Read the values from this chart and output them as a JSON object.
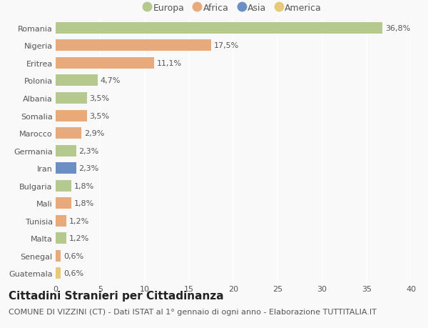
{
  "countries": [
    "Romania",
    "Nigeria",
    "Eritrea",
    "Polonia",
    "Albania",
    "Somalia",
    "Marocco",
    "Germania",
    "Iran",
    "Bulgaria",
    "Mali",
    "Tunisia",
    "Malta",
    "Senegal",
    "Guatemala"
  ],
  "values": [
    36.8,
    17.5,
    11.1,
    4.7,
    3.5,
    3.5,
    2.9,
    2.3,
    2.3,
    1.8,
    1.8,
    1.2,
    1.2,
    0.6,
    0.6
  ],
  "labels": [
    "36,8%",
    "17,5%",
    "11,1%",
    "4,7%",
    "3,5%",
    "3,5%",
    "2,9%",
    "2,3%",
    "2,3%",
    "1,8%",
    "1,8%",
    "1,2%",
    "1,2%",
    "0,6%",
    "0,6%"
  ],
  "continents": [
    "Europa",
    "Africa",
    "Africa",
    "Europa",
    "Europa",
    "Africa",
    "Africa",
    "Europa",
    "Asia",
    "Europa",
    "Africa",
    "Africa",
    "Europa",
    "Africa",
    "America"
  ],
  "colors": {
    "Europa": "#b5c98e",
    "Africa": "#e8aa7a",
    "Asia": "#6b8fc4",
    "America": "#e8c97a"
  },
  "legend_order": [
    "Europa",
    "Africa",
    "Asia",
    "America"
  ],
  "xlim": [
    0,
    40
  ],
  "xticks": [
    0,
    5,
    10,
    15,
    20,
    25,
    30,
    35,
    40
  ],
  "title": "Cittadini Stranieri per Cittadinanza",
  "subtitle": "COMUNE DI VIZZINI (CT) - Dati ISTAT al 1° gennaio di ogni anno - Elaborazione TUTTITALIA.IT",
  "bg_color": "#f9f9f9",
  "grid_color": "#ffffff",
  "bar_height": 0.65,
  "title_fontsize": 11,
  "subtitle_fontsize": 8,
  "label_fontsize": 8,
  "tick_fontsize": 8,
  "legend_fontsize": 9
}
